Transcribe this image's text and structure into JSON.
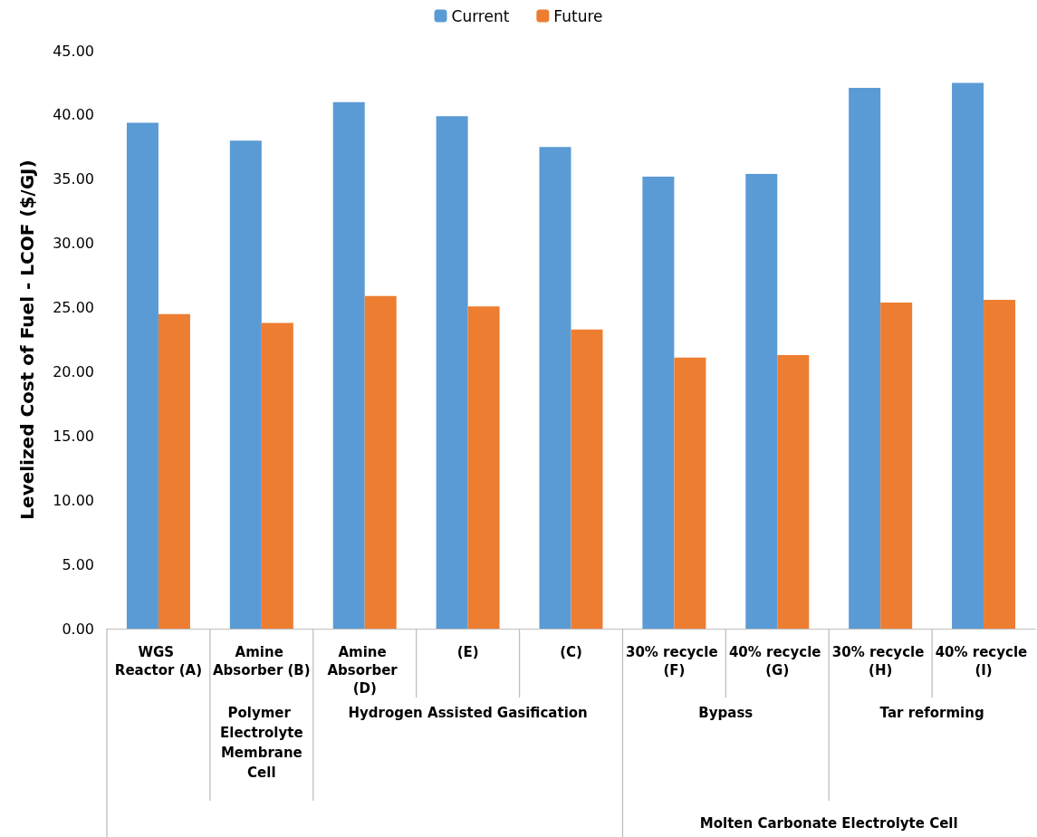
{
  "chart_data": {
    "type": "bar",
    "ylabel": "Levelized Cost of Fuel - LCOF ($/GJ)",
    "categories": [
      "WGS Reactor (A)",
      "Amine Absorber (B)",
      "Amine Absorber (D)",
      "(E)",
      "(C)",
      "30% recycle (F)",
      "40% recycle (G)",
      "30% recycle (H)",
      "40% recycle (I)"
    ],
    "series": [
      {
        "name": "Current",
        "color": "#5b9bd5",
        "values": [
          39.4,
          38.0,
          41.0,
          39.9,
          37.5,
          35.2,
          35.4,
          42.1,
          42.5
        ]
      },
      {
        "name": "Future",
        "color": "#ed7d31",
        "values": [
          24.5,
          23.8,
          25.9,
          25.1,
          23.3,
          21.1,
          21.3,
          25.4,
          25.6
        ]
      }
    ],
    "ylim": [
      0,
      45
    ],
    "yticks": [
      {
        "value": 0,
        "label": "0.00"
      },
      {
        "value": 5,
        "label": "5.00"
      },
      {
        "value": 10,
        "label": "10.00"
      },
      {
        "value": 15,
        "label": "15.00"
      },
      {
        "value": 20,
        "label": "20.00"
      },
      {
        "value": 25,
        "label": "25.00"
      },
      {
        "value": 30,
        "label": "30.00"
      },
      {
        "value": 35,
        "label": "35.00"
      },
      {
        "value": 40,
        "label": "40.00"
      },
      {
        "value": 45,
        "label": "45.00"
      }
    ],
    "annotations": [
      "Polymer Electrolyte Membrane Cell",
      "Hydrogen Assisted Gasification",
      "Bypass",
      "Tar reforming",
      "Molten Carbonate Electrolyte Cell"
    ],
    "grid": false,
    "legend": "top"
  }
}
